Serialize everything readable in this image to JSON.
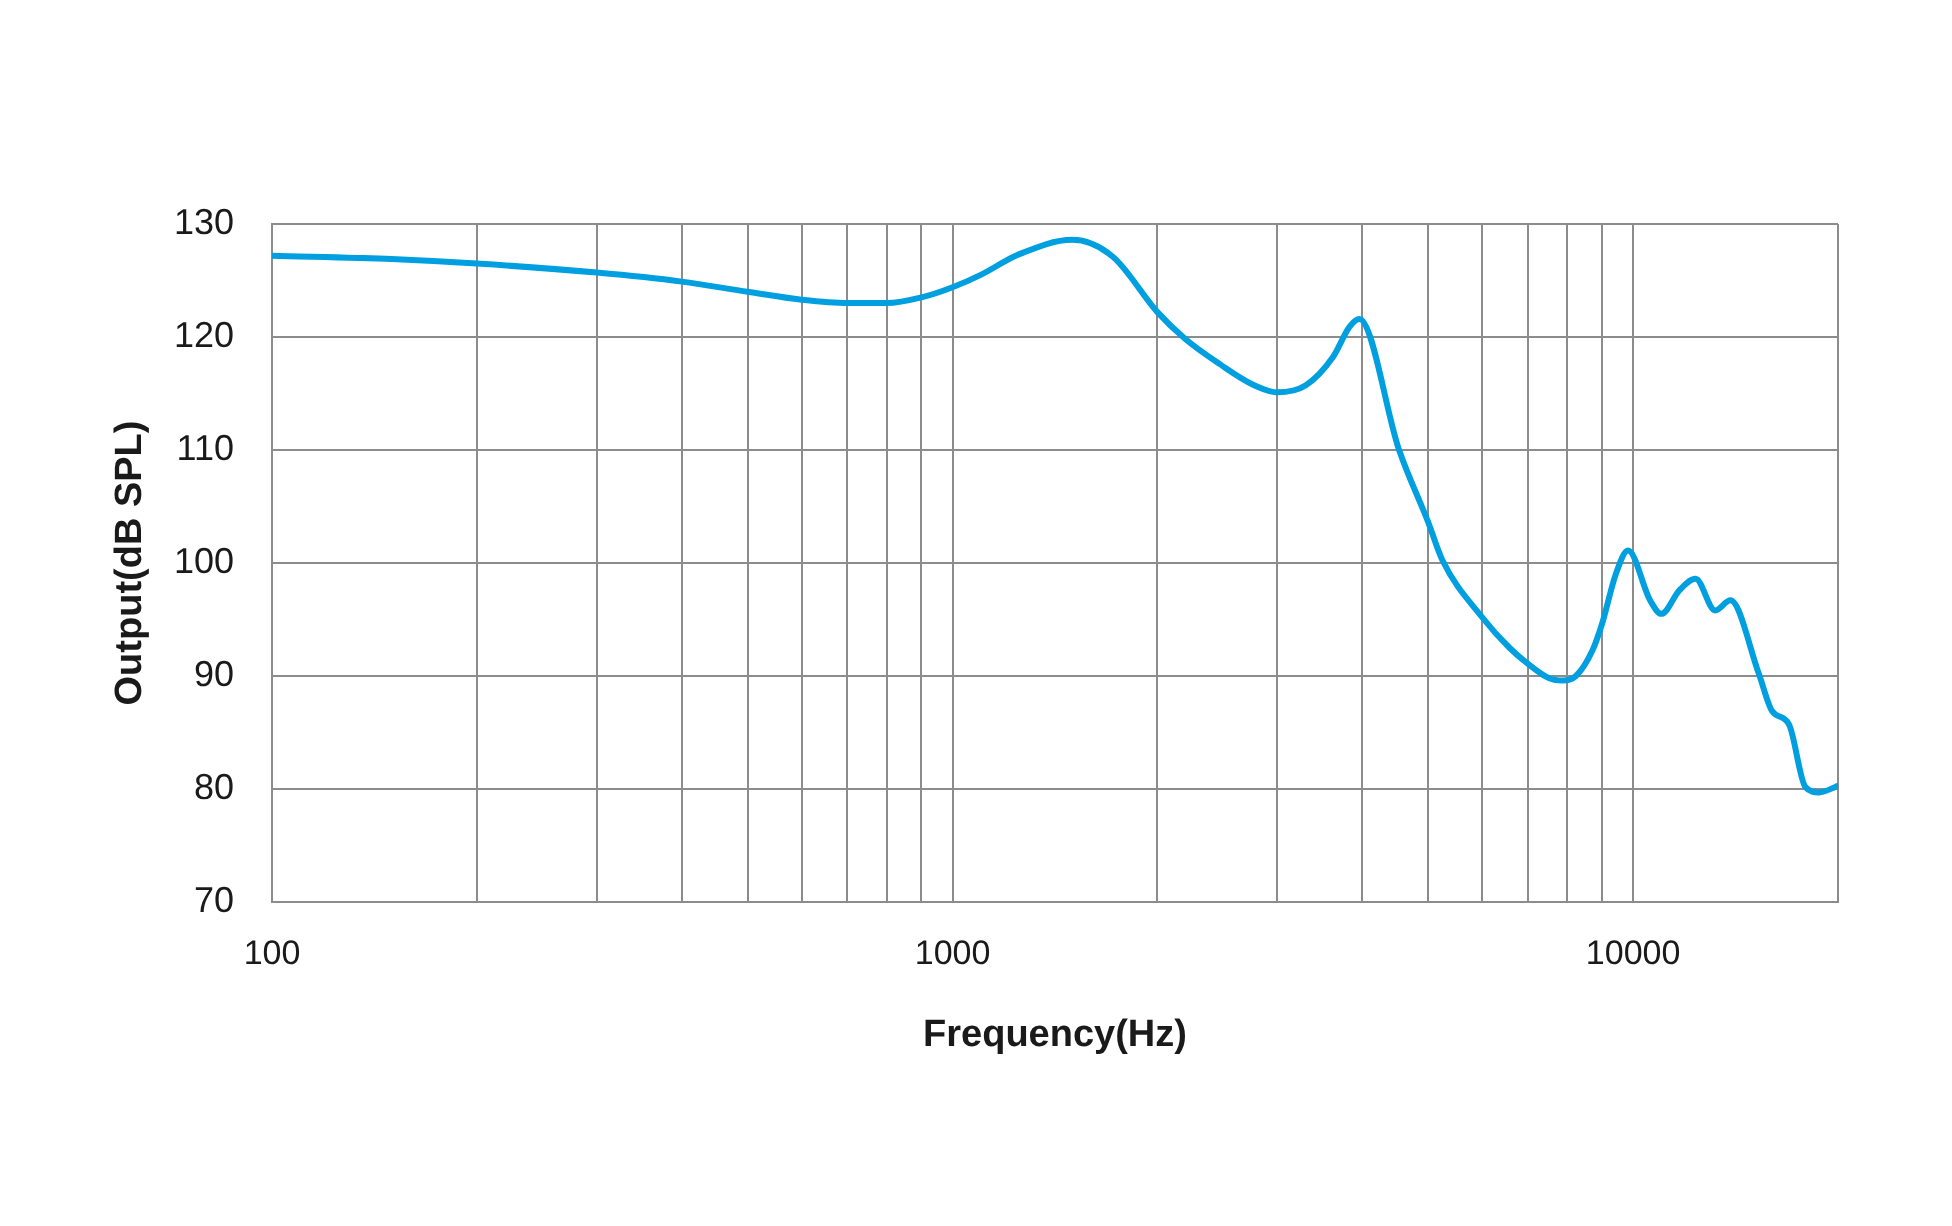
{
  "chart_data": {
    "type": "line",
    "xlabel": "Frequency(Hz)",
    "ylabel": "Output(dB SPL)",
    "log": "x",
    "xlim": [
      100,
      20000
    ],
    "ylim": [
      70,
      130
    ],
    "xticks": [
      100,
      {
        "value": 200,
        "label": null
      },
      {
        "value": 300,
        "label": null
      },
      {
        "value": 400,
        "label": null
      },
      {
        "value": 500,
        "label": null
      },
      {
        "value": 600,
        "label": null
      },
      {
        "value": 700,
        "label": null
      },
      {
        "value": 800,
        "label": null
      },
      {
        "value": 900,
        "label": null
      },
      1000,
      {
        "value": 2000,
        "label": null
      },
      {
        "value": 3000,
        "label": null
      },
      {
        "value": 4000,
        "label": null
      },
      {
        "value": 5000,
        "label": null
      },
      {
        "value": 6000,
        "label": null
      },
      {
        "value": 7000,
        "label": null
      },
      {
        "value": 8000,
        "label": null
      },
      {
        "value": 9000,
        "label": null
      },
      10000,
      {
        "value": 20000,
        "label": null
      }
    ],
    "yticks": [
      70,
      80,
      90,
      100,
      110,
      120,
      130
    ],
    "grid": true,
    "legend": false,
    "marker": "none",
    "line_style": "solid",
    "x": [
      100,
      150,
      200,
      300,
      400,
      500,
      600,
      700,
      800,
      900,
      1000,
      1100,
      1250,
      1500,
      1720,
      2000,
      2200,
      2470,
      2760,
      3000,
      3300,
      3620,
      3830,
      3960,
      4530,
      5000,
      5250,
      6000,
      6580,
      7000,
      7530,
      7880,
      8240,
      8720,
      9000,
      9430,
      9830,
      10590,
      11000,
      11700,
      12350,
      13200,
      13900,
      15300,
      16000,
      16950,
      17900,
      18750,
      19850,
      20000
    ],
    "series": [
      {
        "color": "#00a0e0",
        "values": [
          127.2,
          126.9,
          126.5,
          125.7,
          124.9,
          124.0,
          123.3,
          123.0,
          123.0,
          123.5,
          124.4,
          125.5,
          127.3,
          128.6,
          127.1,
          122.2,
          119.8,
          117.6,
          115.8,
          115.1,
          115.7,
          118.2,
          120.9,
          121.6,
          110.0,
          103.6,
          100.2,
          95.2,
          92.5,
          91.1,
          89.8,
          89.6,
          90.0,
          92.3,
          94.6,
          99.0,
          101.1,
          96.7,
          95.5,
          97.6,
          98.6,
          95.8,
          96.7,
          90.2,
          86.9,
          85.7,
          80.2,
          79.7,
          80.2,
          80.3
        ]
      }
    ]
  }
}
